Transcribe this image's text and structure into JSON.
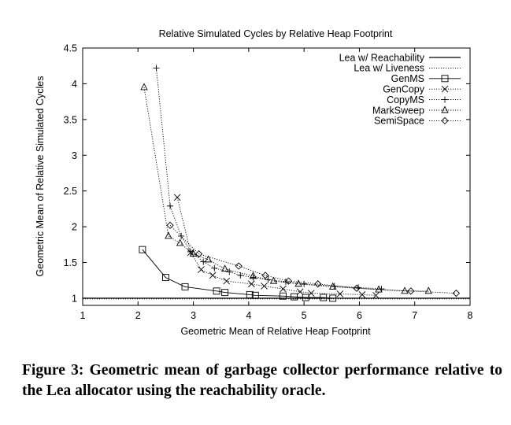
{
  "chart_data": {
    "type": "line",
    "title": "Relative Simulated Cycles by Relative Heap Footprint",
    "xlabel": "Geometric Mean of Relative Heap Footprint",
    "ylabel": "Geometric Mean of Relative Simulated Cycles",
    "xlim": [
      1,
      8
    ],
    "ylim": [
      0.9,
      4.5
    ],
    "xticks": [
      "1",
      "2",
      "3",
      "4",
      "5",
      "6",
      "7",
      "8"
    ],
    "yticks": [
      "1",
      "1.5",
      "2",
      "2.5",
      "3",
      "3.5",
      "4",
      "4.5"
    ],
    "grid": false,
    "legend_position": "top-right",
    "series": [
      {
        "name": "Lea w/ Reachability",
        "style": "solid-line",
        "marker": "none",
        "x": [
          1,
          8
        ],
        "y": [
          1.0,
          1.0
        ]
      },
      {
        "name": "Lea w/ Liveness",
        "style": "dotted-line",
        "marker": "none",
        "x": [
          1,
          8
        ],
        "y": [
          0.99,
          0.99
        ]
      },
      {
        "name": "GenMS",
        "style": "solid-line",
        "marker": "square",
        "x": [
          2.08,
          2.5,
          2.85,
          3.42,
          3.57,
          4.02,
          4.12,
          4.62,
          4.82,
          5.03,
          5.35,
          5.52
        ],
        "y": [
          1.68,
          1.29,
          1.16,
          1.1,
          1.08,
          1.05,
          1.04,
          1.03,
          1.02,
          1.01,
          1.01,
          1.0
        ]
      },
      {
        "name": "GenCopy",
        "style": "dotted-line",
        "marker": "x",
        "x": [
          2.71,
          2.95,
          3.14,
          3.35,
          3.6,
          4.05,
          4.28,
          4.62,
          4.93,
          5.13,
          5.65,
          6.05,
          6.3
        ],
        "y": [
          2.41,
          1.64,
          1.4,
          1.32,
          1.24,
          1.2,
          1.17,
          1.13,
          1.09,
          1.07,
          1.06,
          1.05,
          1.04
        ]
      },
      {
        "name": "CopyMS",
        "style": "dotted-line",
        "marker": "plus",
        "x": [
          2.33,
          2.58,
          2.78,
          2.95,
          3.18,
          3.38,
          3.65,
          3.85,
          4.08,
          4.35,
          4.67,
          5.0,
          5.55,
          5.98,
          6.4
        ],
        "y": [
          4.22,
          2.29,
          1.87,
          1.65,
          1.51,
          1.42,
          1.37,
          1.32,
          1.29,
          1.26,
          1.23,
          1.2,
          1.17,
          1.15,
          1.13
        ]
      },
      {
        "name": "MarkSweep",
        "style": "dotted-line",
        "marker": "triangle",
        "x": [
          2.11,
          2.55,
          2.76,
          3.0,
          3.27,
          3.57,
          4.08,
          4.45,
          4.9,
          5.52,
          6.35,
          6.82,
          7.25
        ],
        "y": [
          3.95,
          1.87,
          1.77,
          1.62,
          1.54,
          1.41,
          1.31,
          1.24,
          1.2,
          1.16,
          1.12,
          1.1,
          1.1
        ]
      },
      {
        "name": "SemiSpace",
        "style": "dotted-line",
        "marker": "diamond",
        "x": [
          2.58,
          3.1,
          3.82,
          4.3,
          4.72,
          5.25,
          5.95,
          6.93,
          7.75
        ],
        "y": [
          2.02,
          1.62,
          1.45,
          1.32,
          1.24,
          1.2,
          1.14,
          1.1,
          1.07
        ]
      }
    ]
  },
  "caption": "Figure 3:  Geometric mean of garbage collector performance relative to the Lea allocator using the reachability oracle."
}
